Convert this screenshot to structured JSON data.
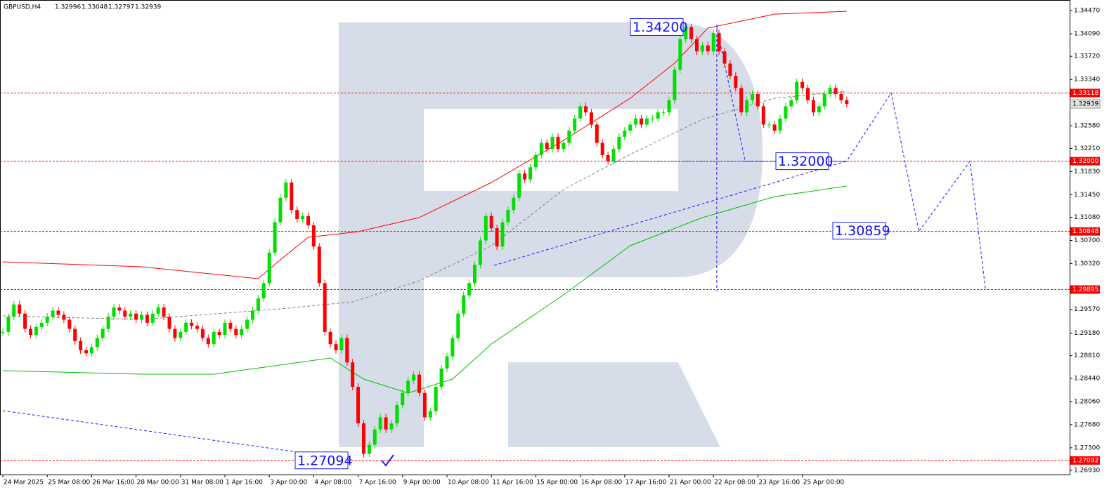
{
  "chart_data": {
    "type": "candlestick",
    "title": "GBPUSD,H4",
    "ohlc": [
      1.32996,
      1.33048,
      1.32797,
      1.32939
    ],
    "categories": [
      "24 Mar 2025",
      null,
      null,
      null,
      null,
      null,
      null,
      null,
      "25 Mar 08:00",
      null,
      null,
      null,
      null,
      null,
      null,
      null,
      "26 Mar 16:00",
      null,
      null,
      null,
      null,
      null,
      null,
      null,
      "28 Mar 00:00",
      null,
      null,
      null,
      null,
      null,
      null,
      null,
      "31 Mar 08:00",
      null,
      null,
      null,
      null,
      null,
      null,
      null,
      "1 Apr 16:00",
      null,
      null,
      null,
      null,
      null,
      null,
      null,
      "3 Apr 00:00",
      null,
      null,
      null,
      null,
      null,
      null,
      null,
      "4 Apr 08:00",
      null,
      null,
      null,
      null,
      null,
      null,
      null,
      "7 Apr 16:00",
      null,
      null,
      null,
      null,
      null,
      null,
      null,
      "9 Apr 00:00",
      null,
      null,
      null,
      null,
      null,
      null,
      null,
      "10 Apr 08:00",
      null,
      null,
      null,
      null,
      null,
      null,
      null,
      "11 Apr 16:00",
      null,
      null,
      null,
      null,
      null,
      null,
      null,
      "15 Apr 00:00",
      null,
      null,
      null,
      null,
      null,
      null,
      null,
      "16 Apr 08:00",
      null,
      null,
      null,
      null,
      null,
      null,
      null,
      "17 Apr 16:00",
      null,
      null,
      null,
      null,
      null,
      null,
      null,
      "21 Apr 00:00",
      null,
      null,
      null,
      null,
      null,
      null,
      null,
      "22 Apr 08:00",
      null,
      null,
      null,
      null,
      null,
      null,
      null,
      "23 Apr 16:00",
      null,
      null,
      null,
      null,
      null,
      null,
      null,
      "25 Apr 00:00",
      null,
      null,
      null,
      null,
      null,
      null,
      null,
      null
    ],
    "closes": [
      1.292,
      1.2945,
      1.2965,
      1.295,
      1.2925,
      1.2915,
      1.2928,
      1.2935,
      1.2945,
      1.2955,
      1.2948,
      1.294,
      1.2925,
      1.2905,
      1.289,
      1.2885,
      1.2895,
      1.291,
      1.2925,
      1.2945,
      1.296,
      1.2955,
      1.2945,
      1.295,
      1.294,
      1.2948,
      1.2935,
      1.295,
      1.296,
      1.2945,
      1.2925,
      1.291,
      1.292,
      1.2935,
      1.293,
      1.2925,
      1.291,
      1.29,
      1.292,
      1.2915,
      1.2935,
      1.2925,
      1.2915,
      1.2925,
      1.294,
      1.2955,
      1.2975,
      1.3,
      1.305,
      1.31,
      1.314,
      1.3165,
      1.312,
      1.3105,
      1.311,
      1.3095,
      1.306,
      1.3,
      1.292,
      1.29,
      1.289,
      1.291,
      1.287,
      1.283,
      1.277,
      1.272,
      1.2735,
      1.276,
      1.278,
      1.276,
      1.277,
      1.28,
      1.282,
      1.284,
      1.285,
      1.282,
      1.278,
      1.279,
      1.283,
      1.286,
      1.288,
      1.291,
      1.295,
      1.298,
      1.3,
      1.303,
      1.307,
      1.311,
      1.309,
      1.306,
      1.31,
      1.312,
      1.314,
      1.318,
      1.317,
      1.319,
      1.321,
      1.323,
      1.322,
      1.324,
      1.322,
      1.323,
      1.325,
      1.327,
      1.329,
      1.328,
      1.326,
      1.323,
      1.321,
      1.32,
      1.322,
      1.324,
      1.325,
      1.326,
      1.327,
      1.326,
      1.327,
      1.327,
      1.328,
      1.328,
      1.33,
      1.335,
      1.34,
      1.342,
      1.34,
      1.338,
      1.339,
      1.338,
      1.341,
      1.338,
      1.336,
      1.334,
      1.332,
      1.328,
      1.33,
      1.331,
      1.329,
      1.326,
      1.326,
      1.325,
      1.327,
      1.329,
      1.33,
      1.333,
      1.332,
      1.33,
      1.328,
      1.329,
      1.331,
      1.332,
      1.331,
      1.33,
      1.32939
    ],
    "bull_color": "#00e000",
    "bear_color": "#ff0000",
    "series": [
      {
        "color": "#ff0000",
        "style": "solid",
        "x": [
          0,
          25,
          46,
          50,
          55,
          64,
          75,
          88,
          101,
          113,
          121,
          127,
          139,
          152
        ],
        "values": [
          1.30349,
          1.30269,
          1.30073,
          1.30384,
          1.30752,
          1.30844,
          1.31075,
          1.3165,
          1.32341,
          1.33031,
          1.33607,
          1.34182,
          1.34412,
          1.34458
        ]
      },
      {
        "color": "#00c000",
        "style": "solid",
        "x": [
          0,
          25,
          38,
          59,
          65,
          73,
          81,
          88,
          101,
          113,
          126,
          139,
          152
        ],
        "values": [
          1.28565,
          1.28507,
          1.28507,
          1.28772,
          1.28427,
          1.28196,
          1.28427,
          1.29002,
          1.29808,
          1.30614,
          1.31074,
          1.31419,
          1.31592
        ]
      },
      {
        "color": "#808080",
        "style": "dash",
        "x": [
          0,
          25,
          50,
          63,
          75,
          88,
          101,
          113,
          126,
          139,
          152
        ],
        "values": [
          1.29463,
          1.29405,
          1.29578,
          1.29693,
          1.30038,
          1.30614,
          1.31535,
          1.3211,
          1.32686,
          1.33031,
          1.33146
        ]
      },
      {
        "color": "#1a1aff",
        "style": "dash",
        "x": [
          128.6,
          133.7,
          152,
          160,
          165,
          174.2,
          177
        ],
        "values": [
          1.342,
          1.32,
          1.32,
          1.33118,
          1.30848,
          1.32,
          1.29895
        ]
      },
      {
        "color": "#1a1aff",
        "style": "dash",
        "x": [
          0,
          63
        ],
        "values": [
          1.27909,
          1.27103
        ]
      },
      {
        "color": "#1a1aff",
        "style": "dash",
        "x": [
          88.5,
          152
        ],
        "values": [
          1.30291,
          1.32
        ]
      },
      {
        "color": "#1a1aff",
        "style": "dash",
        "x": [
          128.6,
          128.6
        ],
        "values": [
          1.3424,
          1.2987
        ]
      },
      {
        "color": "#1a1aff",
        "style": "dot",
        "x": [
          109.6,
          152
        ],
        "values": [
          1.32,
          1.32
        ]
      }
    ],
    "levels": [
      {
        "value": 1.33118,
        "label": "1.33118"
      },
      {
        "value": 1.32,
        "label": "1.32000"
      },
      {
        "value": 1.30848,
        "label": "1.30848"
      },
      {
        "value": 1.29895,
        "label": "1.29895"
      },
      {
        "value": 1.27092,
        "label": "1.27092"
      }
    ],
    "level_color": "#ff0000",
    "current": {
      "value": 1.32939,
      "label": "1.32939"
    },
    "annotations": [
      {
        "value": 1.342,
        "label": "1.34200"
      },
      {
        "value": 1.32,
        "label": "1.32000"
      },
      {
        "value": 1.30859,
        "label": "1.30859"
      },
      {
        "value": 1.27094,
        "label": "1.27094"
      }
    ],
    "ylim": [
      1.26861,
      1.34643
    ],
    "yticks": [
      {
        "value": 1.3447,
        "label": "1.34470"
      },
      {
        "value": 1.3409,
        "label": "1.34090"
      },
      {
        "value": 1.3372,
        "label": "1.33720"
      },
      {
        "value": 1.3334,
        "label": "1.33340"
      },
      {
        "value": 1.3258,
        "label": "1.32580"
      },
      {
        "value": 1.3221,
        "label": "1.32210"
      },
      {
        "value": 1.3183,
        "label": "1.31830"
      },
      {
        "value": 1.3145,
        "label": "1.31450"
      },
      {
        "value": 1.3108,
        "label": "1.31080"
      },
      {
        "value": 1.307,
        "label": "1.30700"
      },
      {
        "value": 1.3032,
        "label": "1.30320"
      },
      {
        "value": 1.2957,
        "label": "1.29570"
      },
      {
        "value": 1.2918,
        "label": "1.29180"
      },
      {
        "value": 1.2881,
        "label": "1.28810"
      },
      {
        "value": 1.2844,
        "label": "1.28440"
      },
      {
        "value": 1.2806,
        "label": "1.28060"
      },
      {
        "value": 1.2768,
        "label": "1.27680"
      },
      {
        "value": 1.273,
        "label": "1.27300"
      },
      {
        "value": 1.2693,
        "label": "1.26930"
      }
    ]
  }
}
